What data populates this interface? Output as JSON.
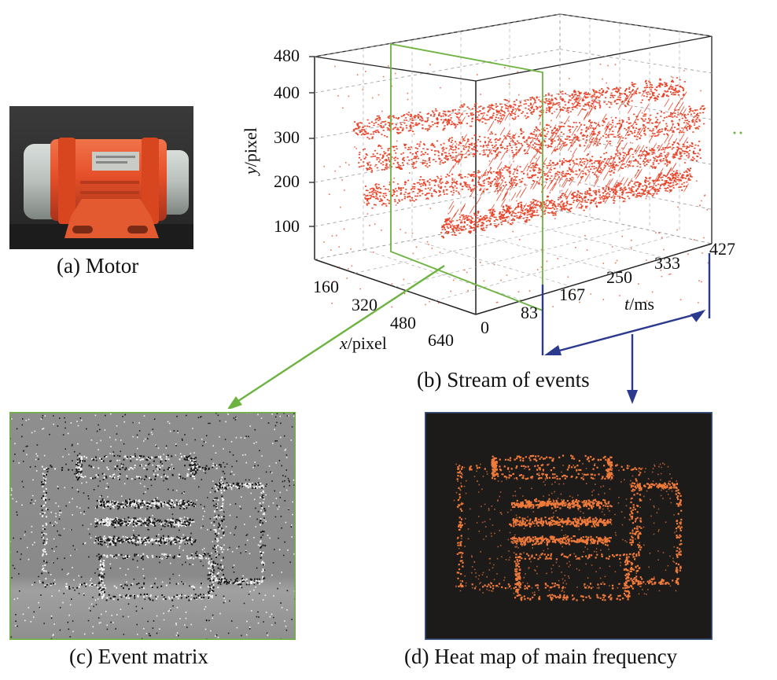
{
  "captions": {
    "a": "(a) Motor",
    "b": "(b) Stream of events",
    "c": "(c) Event matrix",
    "d": "(d) Heat map of main frequency"
  },
  "axes": {
    "y_label_italic": "y",
    "y_label_unit": "/pixel",
    "x_label_italic": "x",
    "x_label_unit": "/pixel",
    "t_label_italic": "t",
    "t_label_unit": "/ms",
    "y_ticks": [
      "480",
      "400",
      "300",
      "200",
      "100"
    ],
    "x_ticks": [
      "160",
      "320",
      "480",
      "640"
    ],
    "t_ticks": [
      "0",
      "83",
      "167",
      "250",
      "333",
      "427"
    ]
  },
  "colors": {
    "events": "#e8452a",
    "heat": "#f07a3a",
    "green_slice": "#6db33f",
    "blue_window": "#2b3a8f",
    "motor_body": "#e5502a",
    "event_matrix_bg": "#8a8a8a",
    "heat_bg": "#1d1a1a"
  },
  "icons": {
    "motor": "motor-photo-icon",
    "arrow_green": "arrow-down-left-icon",
    "arrow_blue": "arrow-down-icon"
  }
}
